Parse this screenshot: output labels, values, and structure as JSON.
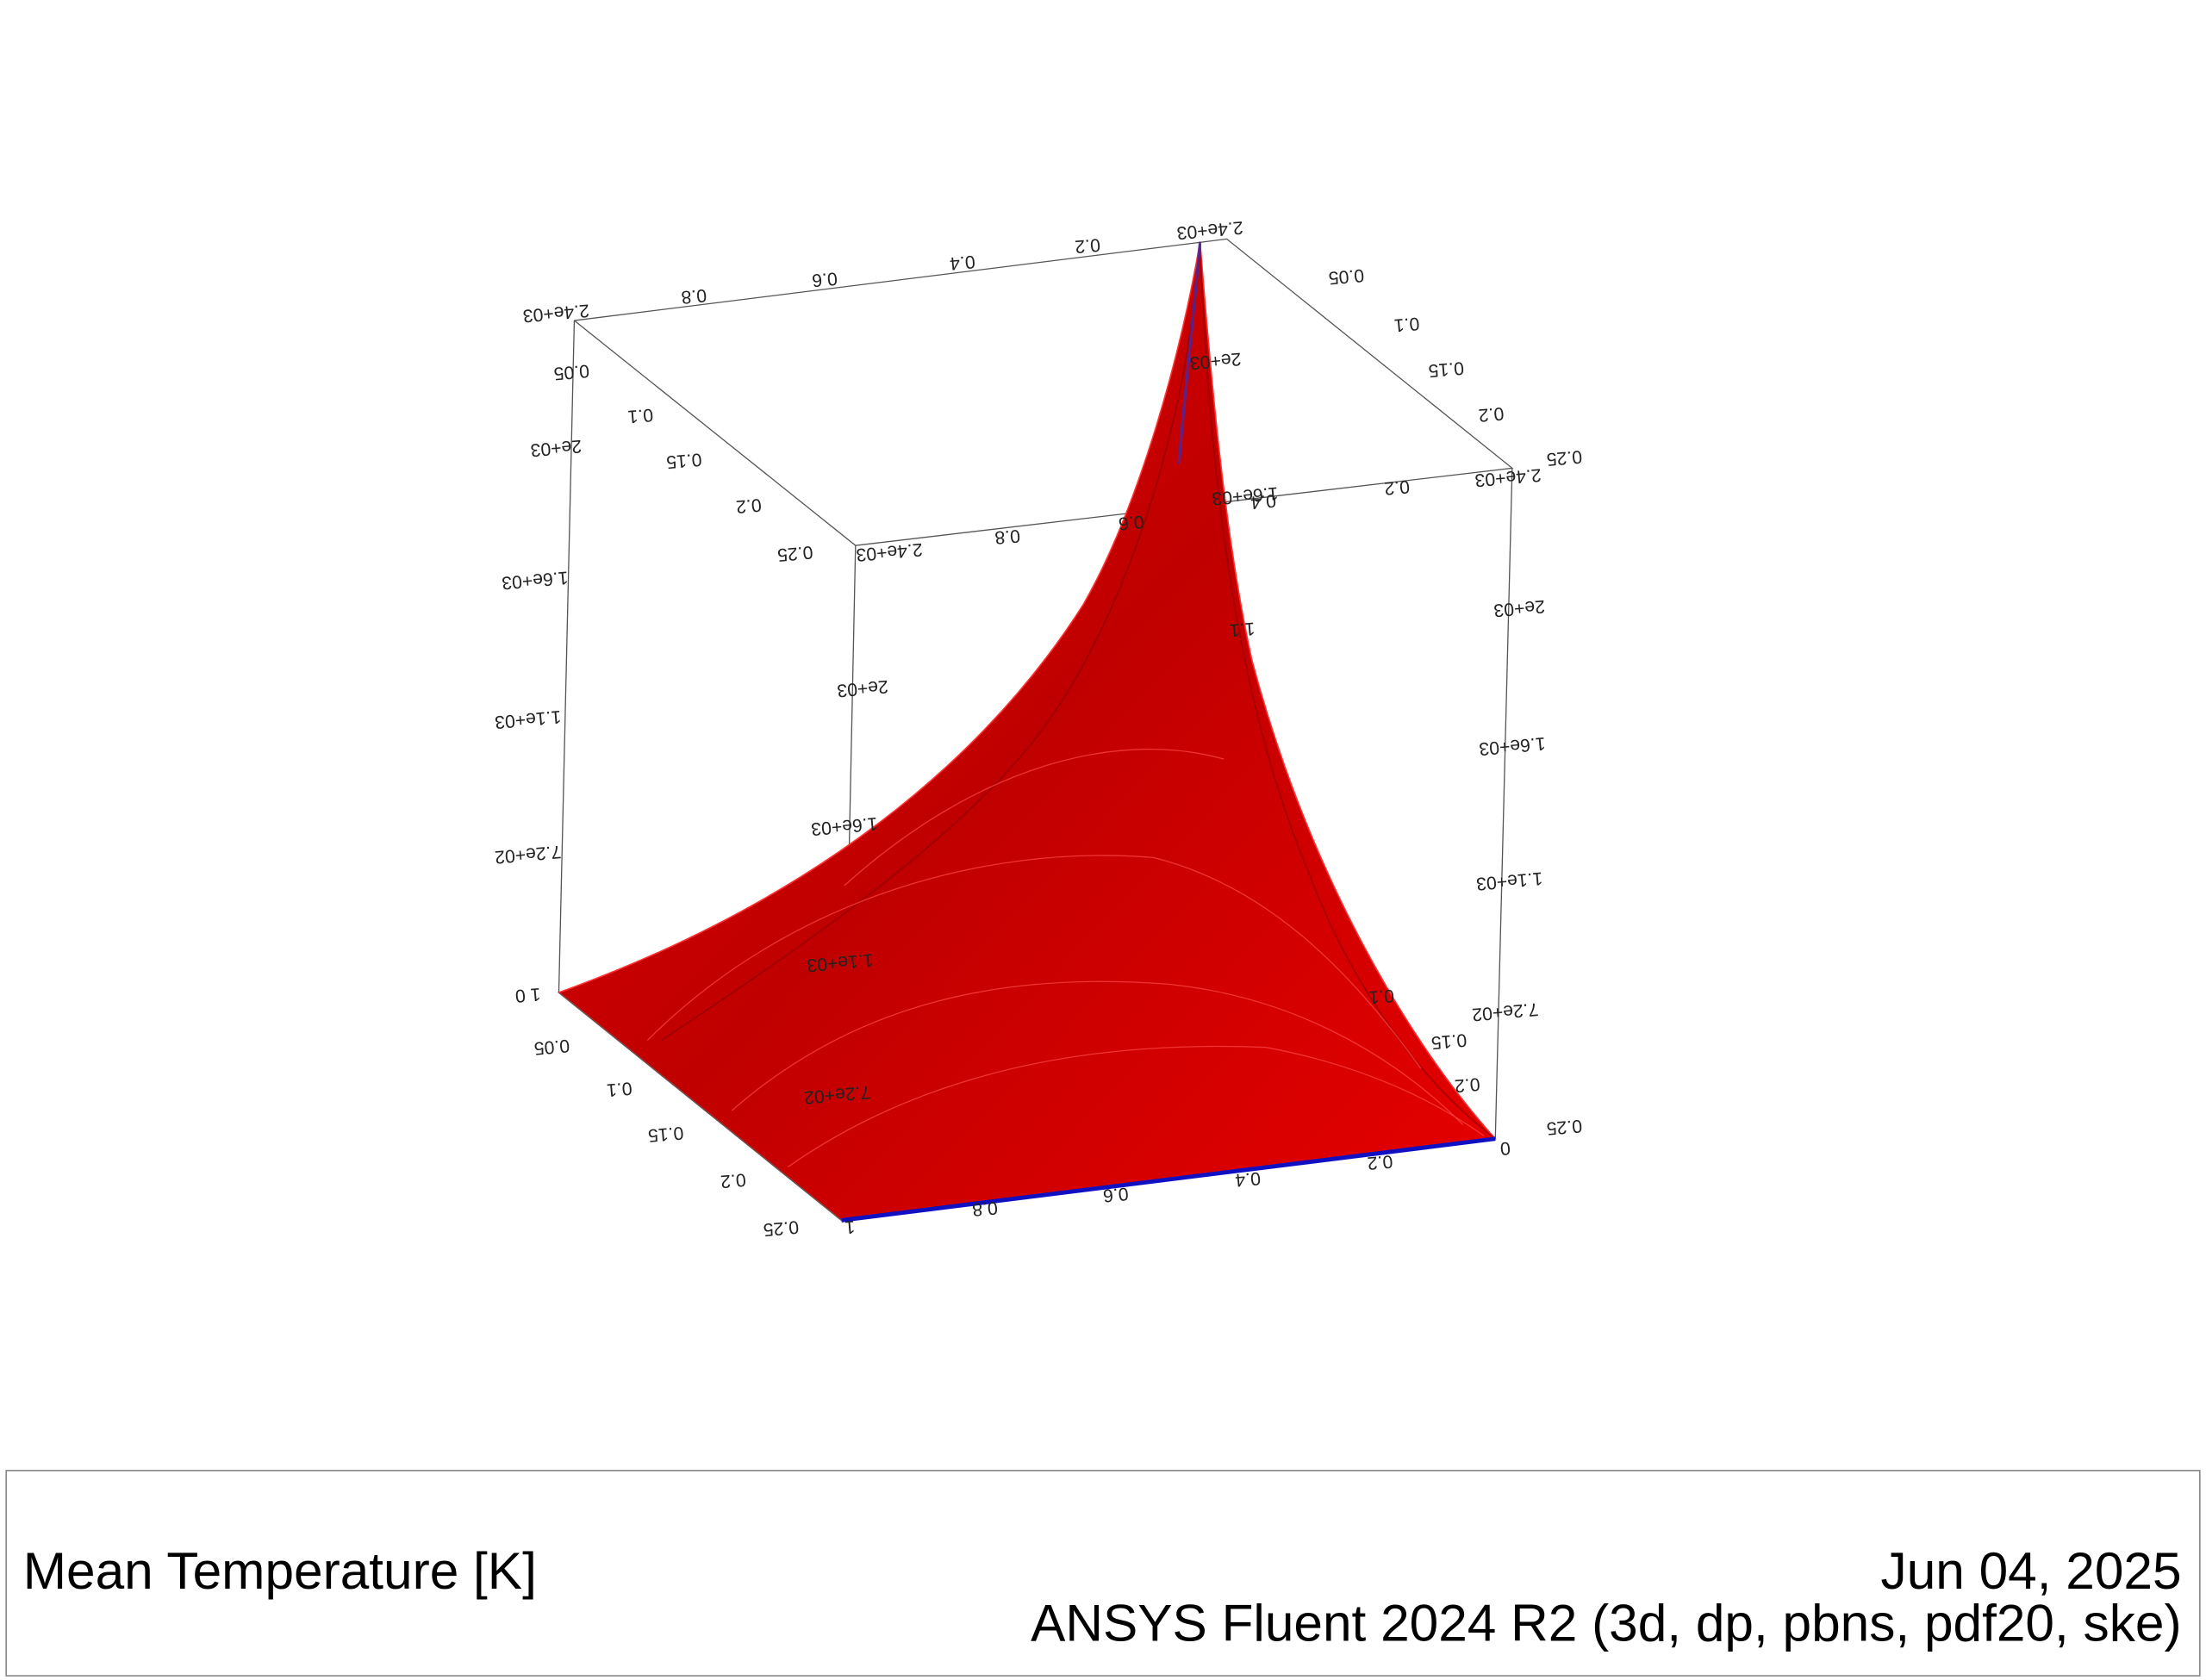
{
  "plot": {
    "tick_labels": [
      "2.4e+03",
      "0.8",
      "0.6",
      "0.4",
      "0.2",
      "2.4e+03",
      "0.05",
      "0.1",
      "0.15",
      "0.2",
      "0.25",
      "2.4e+03",
      "2.4e+03",
      "0.8",
      "0.6",
      "0.4",
      "0.2",
      "0.05",
      "0.1",
      "0.15",
      "0.2",
      "0.25",
      "2e+03",
      "1.6e+03",
      "1.1e+03",
      "7.2e+02",
      "1  0",
      "2e+03",
      "1.6e+03",
      "1.1e+03",
      "7.2e+02",
      "2e+03",
      "1.6e+03",
      "1.1",
      "2e+03",
      "1.6e+03",
      "1.1e+03",
      "7.2e+02",
      "0.05",
      "0.1",
      "0.15",
      "0.2",
      "0.25",
      "1",
      "0.8",
      "0.6",
      "0.4",
      "0.2",
      "0",
      "0.25",
      "0.2",
      "0.15",
      "0.1"
    ]
  },
  "footer": {
    "title": "Mean Temperature [K]",
    "date": "Jun 04, 2025",
    "version": "ANSYS Fluent 2024 R2 (3d, dp, pbns, pdf20, ske)"
  }
}
